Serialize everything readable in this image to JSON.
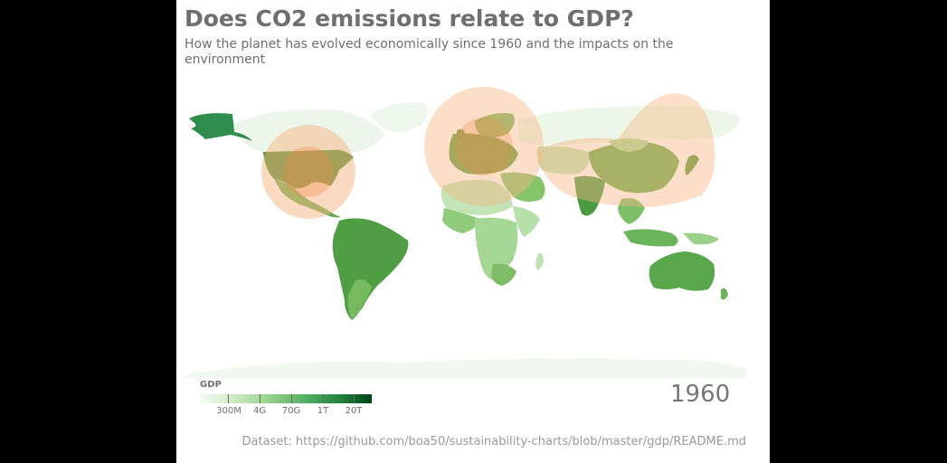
{
  "header": {
    "title": "Does CO2 emissions relate to GDP?",
    "subtitle": "How the planet has evolved economically since 1960 and the impacts on the environment"
  },
  "legend": {
    "title": "GDP",
    "ticks": [
      "300M",
      "4G",
      "70G",
      "1T",
      "20T"
    ],
    "color_low": "#f4fbf2",
    "color_high": "#00441b"
  },
  "year": "1960",
  "footer": {
    "dataset": "Dataset: https://github.com/boa50/sustainability-charts/blob/master/gdp/README.md"
  },
  "colors": {
    "bubble": "#f6b784",
    "bubble_core": "#f08a44"
  }
}
